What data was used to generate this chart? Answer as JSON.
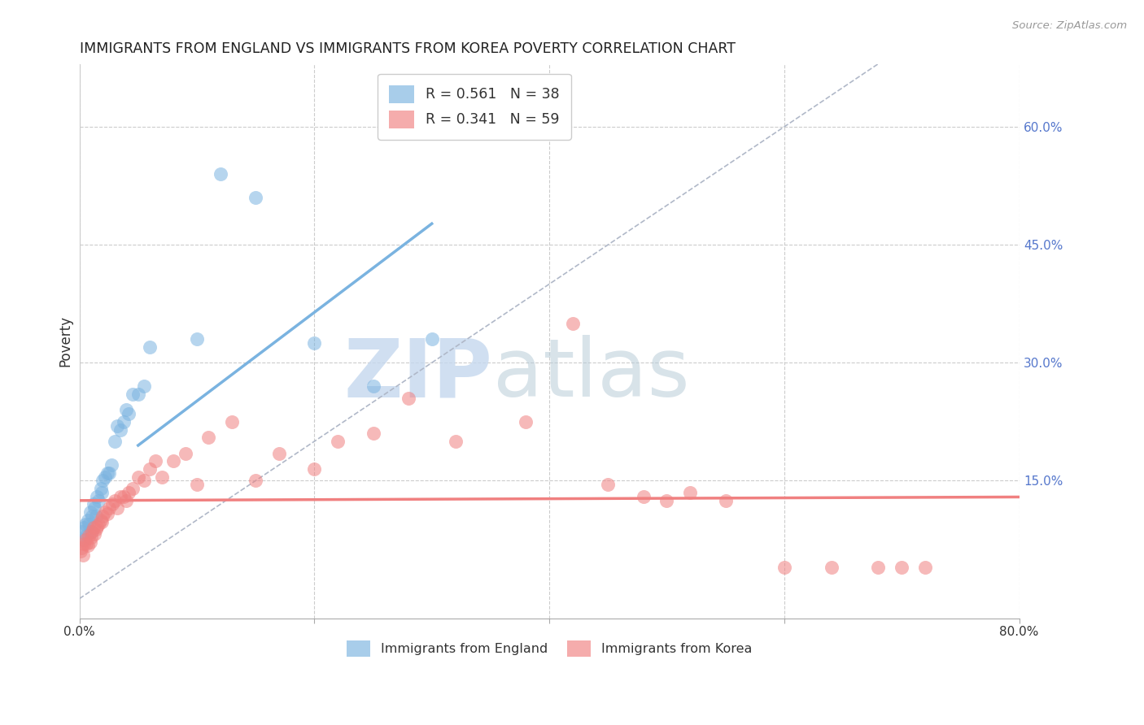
{
  "title": "IMMIGRANTS FROM ENGLAND VS IMMIGRANTS FROM KOREA POVERTY CORRELATION CHART",
  "source": "Source: ZipAtlas.com",
  "ylabel": "Poverty",
  "xlim": [
    0.0,
    0.8
  ],
  "ylim": [
    -0.025,
    0.68
  ],
  "yticks_right": [
    0.6,
    0.45,
    0.3,
    0.15
  ],
  "ytick_labels_right": [
    "60.0%",
    "45.0%",
    "30.0%",
    "15.0%"
  ],
  "england_color": "#7ab3e0",
  "korea_color": "#f08080",
  "grid_color": "#cccccc",
  "watermark_zip": "ZIP",
  "watermark_atlas": "atlas",
  "england_label_R": "R = 0.561",
  "england_label_N": "N = 38",
  "korea_label_R": "R = 0.341",
  "korea_label_N": "N = 59",
  "england_bottom_label": "Immigrants from England",
  "korea_bottom_label": "Immigrants from Korea",
  "england_points_x": [
    0.002,
    0.003,
    0.004,
    0.005,
    0.006,
    0.007,
    0.008,
    0.009,
    0.01,
    0.011,
    0.012,
    0.013,
    0.014,
    0.015,
    0.016,
    0.018,
    0.019,
    0.02,
    0.022,
    0.024,
    0.025,
    0.027,
    0.03,
    0.032,
    0.035,
    0.038,
    0.04,
    0.042,
    0.045,
    0.05,
    0.055,
    0.06,
    0.1,
    0.12,
    0.15,
    0.2,
    0.25,
    0.3
  ],
  "england_points_y": [
    0.085,
    0.075,
    0.09,
    0.095,
    0.08,
    0.1,
    0.095,
    0.11,
    0.085,
    0.105,
    0.12,
    0.115,
    0.105,
    0.13,
    0.125,
    0.14,
    0.135,
    0.15,
    0.155,
    0.16,
    0.16,
    0.17,
    0.2,
    0.22,
    0.215,
    0.225,
    0.24,
    0.235,
    0.26,
    0.26,
    0.27,
    0.32,
    0.33,
    0.54,
    0.51,
    0.325,
    0.27,
    0.33
  ],
  "korea_points_x": [
    0.001,
    0.002,
    0.003,
    0.004,
    0.005,
    0.006,
    0.007,
    0.008,
    0.009,
    0.01,
    0.011,
    0.012,
    0.013,
    0.014,
    0.015,
    0.016,
    0.018,
    0.019,
    0.02,
    0.022,
    0.024,
    0.025,
    0.028,
    0.03,
    0.032,
    0.035,
    0.038,
    0.04,
    0.042,
    0.045,
    0.05,
    0.055,
    0.06,
    0.065,
    0.07,
    0.08,
    0.09,
    0.1,
    0.11,
    0.13,
    0.15,
    0.17,
    0.2,
    0.22,
    0.25,
    0.28,
    0.32,
    0.38,
    0.42,
    0.45,
    0.48,
    0.5,
    0.52,
    0.55,
    0.6,
    0.64,
    0.68,
    0.7,
    0.72
  ],
  "korea_points_y": [
    0.06,
    0.065,
    0.055,
    0.07,
    0.075,
    0.07,
    0.068,
    0.08,
    0.072,
    0.078,
    0.085,
    0.09,
    0.082,
    0.088,
    0.092,
    0.095,
    0.1,
    0.098,
    0.105,
    0.11,
    0.108,
    0.115,
    0.12,
    0.125,
    0.115,
    0.13,
    0.13,
    0.125,
    0.135,
    0.14,
    0.155,
    0.15,
    0.165,
    0.175,
    0.155,
    0.175,
    0.185,
    0.145,
    0.205,
    0.225,
    0.15,
    0.185,
    0.165,
    0.2,
    0.21,
    0.255,
    0.2,
    0.225,
    0.35,
    0.145,
    0.13,
    0.125,
    0.135,
    0.125,
    0.04,
    0.04,
    0.04,
    0.04,
    0.04
  ]
}
